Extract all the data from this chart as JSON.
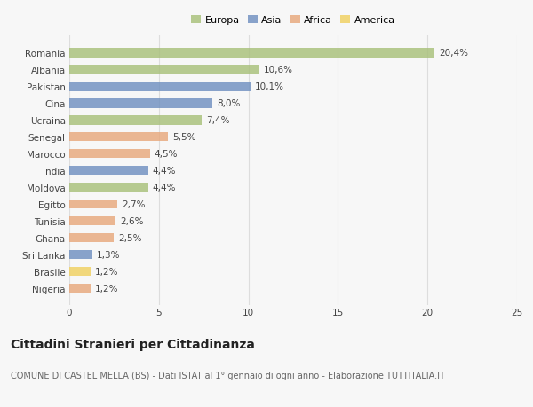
{
  "countries": [
    "Romania",
    "Albania",
    "Pakistan",
    "Cina",
    "Ucraina",
    "Senegal",
    "Marocco",
    "India",
    "Moldova",
    "Egitto",
    "Tunisia",
    "Ghana",
    "Sri Lanka",
    "Brasile",
    "Nigeria"
  ],
  "values": [
    20.4,
    10.6,
    10.1,
    8.0,
    7.4,
    5.5,
    4.5,
    4.4,
    4.4,
    2.7,
    2.6,
    2.5,
    1.3,
    1.2,
    1.2
  ],
  "labels": [
    "20,4%",
    "10,6%",
    "10,1%",
    "8,0%",
    "7,4%",
    "5,5%",
    "4,5%",
    "4,4%",
    "4,4%",
    "2,7%",
    "2,6%",
    "2,5%",
    "1,3%",
    "1,2%",
    "1,2%"
  ],
  "continents": [
    "Europa",
    "Europa",
    "Asia",
    "Asia",
    "Europa",
    "Africa",
    "Africa",
    "Asia",
    "Europa",
    "Africa",
    "Africa",
    "Africa",
    "Asia",
    "America",
    "Africa"
  ],
  "continent_colors": {
    "Europa": "#a8c07a",
    "Asia": "#7090c0",
    "Africa": "#e8a87c",
    "America": "#f0d060"
  },
  "legend_labels": [
    "Europa",
    "Asia",
    "Africa",
    "America"
  ],
  "legend_colors": [
    "#a8c07a",
    "#7090c0",
    "#e8a87c",
    "#f0d060"
  ],
  "xlim": [
    0,
    25
  ],
  "xticks": [
    0,
    5,
    10,
    15,
    20,
    25
  ],
  "title": "Cittadini Stranieri per Cittadinanza",
  "subtitle": "COMUNE DI CASTEL MELLA (BS) - Dati ISTAT al 1° gennaio di ogni anno - Elaborazione TUTTITALIA.IT",
  "background_color": "#f7f7f7",
  "bar_height": 0.55,
  "label_fontsize": 7.5,
  "title_fontsize": 10,
  "subtitle_fontsize": 7,
  "tick_fontsize": 7.5,
  "legend_fontsize": 8
}
